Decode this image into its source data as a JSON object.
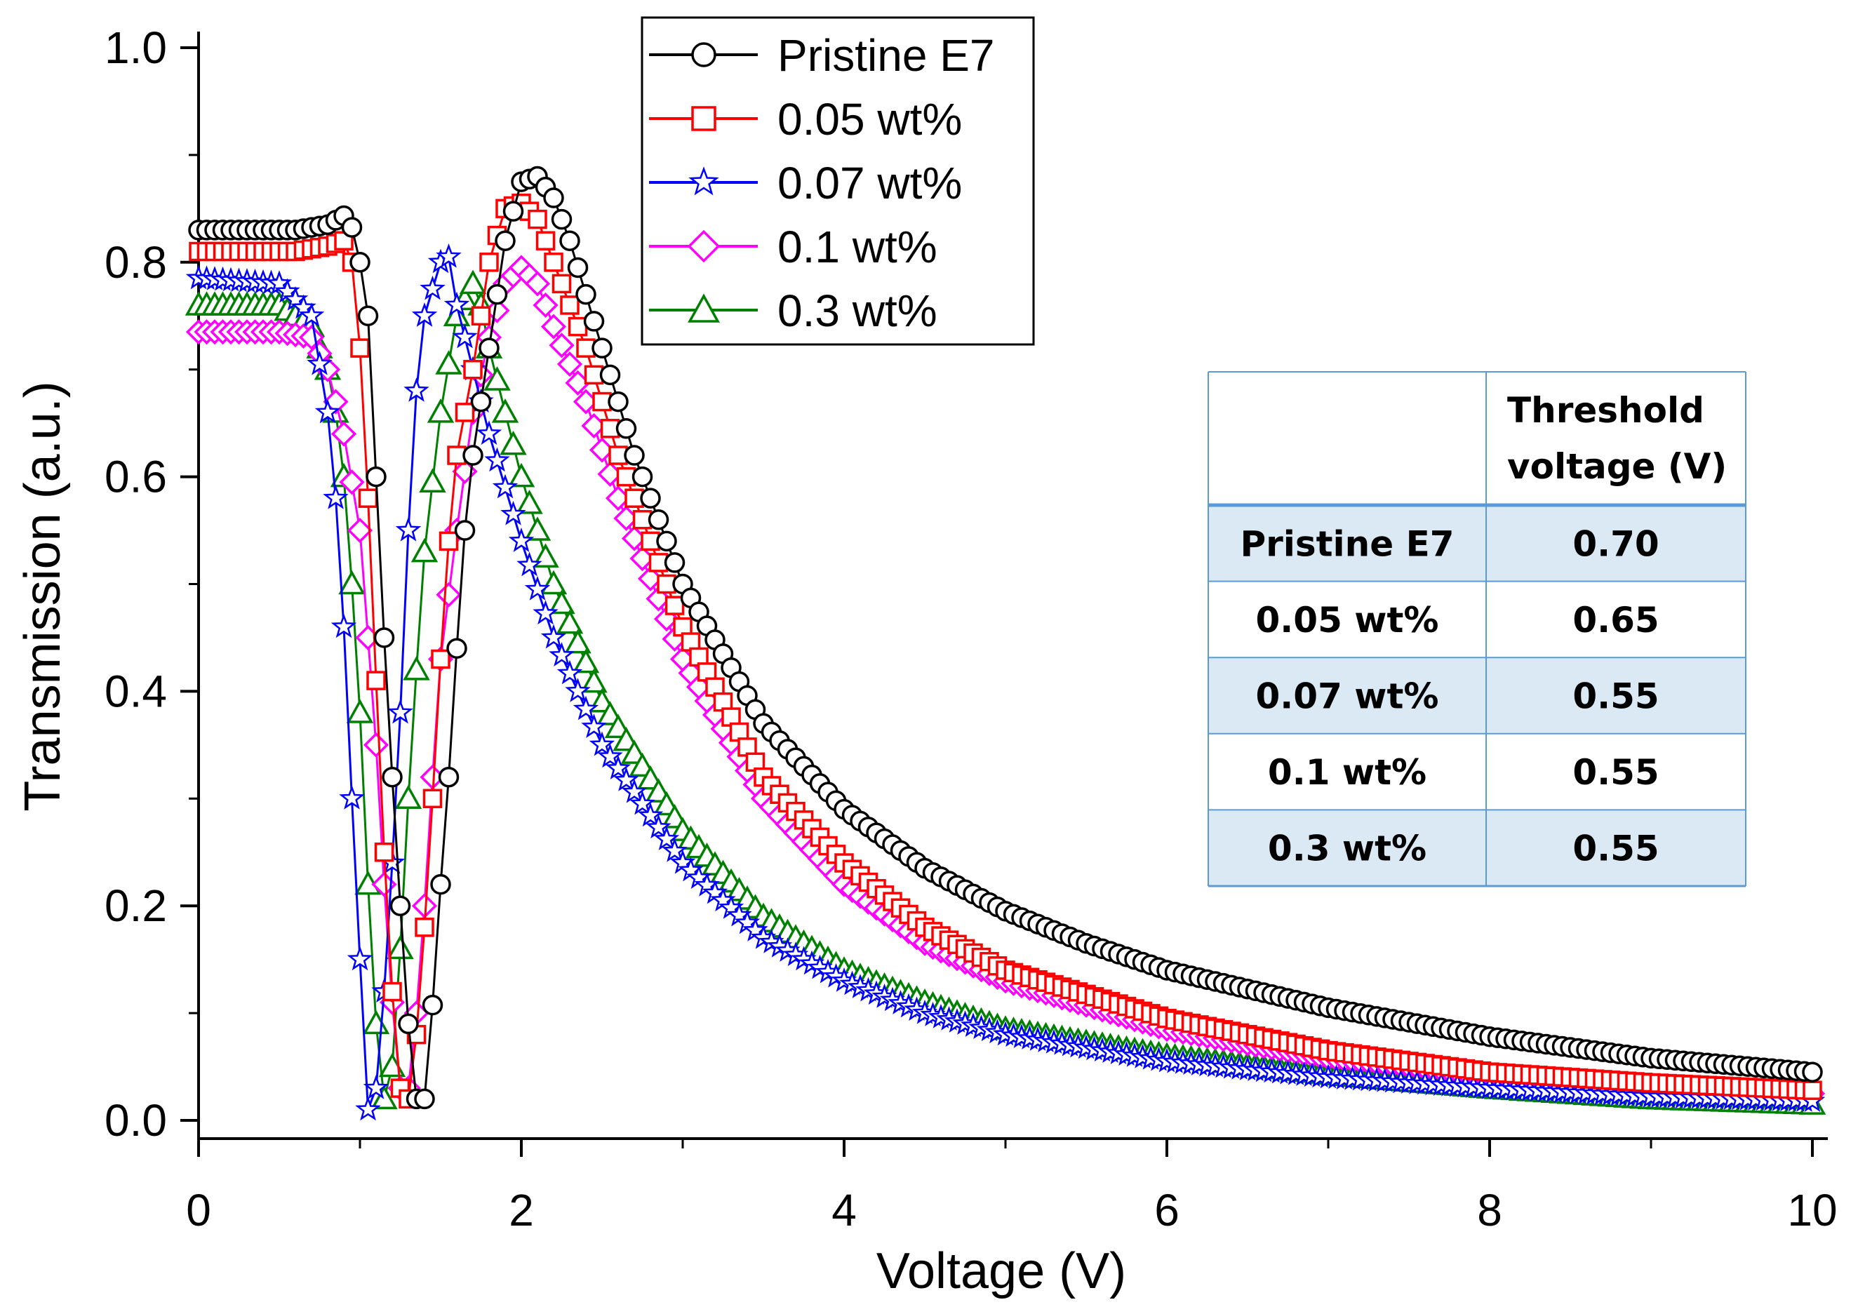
{
  "chart_data": {
    "type": "scatter",
    "title": "",
    "xlabel": "Voltage (V)",
    "ylabel": "Transmission (a.u.)",
    "xlim": [
      0,
      10
    ],
    "ylim": [
      0,
      1.0
    ],
    "x_ticks": [
      0,
      2,
      4,
      6,
      8,
      10
    ],
    "x_tick_labels": [
      "0",
      "2",
      "4",
      "6",
      "8",
      "10"
    ],
    "y_ticks": [
      0,
      0.2,
      0.4,
      0.6,
      0.8,
      1.0
    ],
    "y_tick_labels": [
      "0.0",
      "0.2",
      "0.4",
      "0.6",
      "0.8",
      "1.0"
    ],
    "grid": false,
    "legend_position": "top-center",
    "series": [
      {
        "name": "Pristine E7",
        "color": "#000000",
        "marker": "circle",
        "points": [
          [
            0,
            0.83
          ],
          [
            0.6,
            0.83
          ],
          [
            0.8,
            0.835
          ],
          [
            0.92,
            0.845
          ],
          [
            0.98,
            0.82
          ],
          [
            1.05,
            0.75
          ],
          [
            1.1,
            0.6
          ],
          [
            1.15,
            0.45
          ],
          [
            1.2,
            0.32
          ],
          [
            1.25,
            0.2
          ],
          [
            1.3,
            0.09
          ],
          [
            1.35,
            0.02
          ],
          [
            1.38,
            0.0
          ],
          [
            1.42,
            0.04
          ],
          [
            1.46,
            0.13
          ],
          [
            1.5,
            0.22
          ],
          [
            1.55,
            0.32
          ],
          [
            1.6,
            0.44
          ],
          [
            1.65,
            0.55
          ],
          [
            1.7,
            0.62
          ],
          [
            1.8,
            0.72
          ],
          [
            1.9,
            0.82
          ],
          [
            2.0,
            0.875
          ],
          [
            2.1,
            0.88
          ],
          [
            2.2,
            0.86
          ],
          [
            2.3,
            0.82
          ],
          [
            2.5,
            0.72
          ],
          [
            2.7,
            0.62
          ],
          [
            3.0,
            0.5
          ],
          [
            3.5,
            0.37
          ],
          [
            4.0,
            0.29
          ],
          [
            4.5,
            0.235
          ],
          [
            5.0,
            0.195
          ],
          [
            5.5,
            0.165
          ],
          [
            6.0,
            0.14
          ],
          [
            7.0,
            0.105
          ],
          [
            8.0,
            0.078
          ],
          [
            9.0,
            0.058
          ],
          [
            10.0,
            0.045
          ]
        ]
      },
      {
        "name": "0.05 wt%",
        "color": "#ff0000",
        "marker": "square",
        "points": [
          [
            0,
            0.81
          ],
          [
            0.6,
            0.81
          ],
          [
            0.8,
            0.815
          ],
          [
            0.9,
            0.82
          ],
          [
            0.95,
            0.8
          ],
          [
            1.0,
            0.72
          ],
          [
            1.05,
            0.58
          ],
          [
            1.1,
            0.41
          ],
          [
            1.15,
            0.25
          ],
          [
            1.2,
            0.12
          ],
          [
            1.25,
            0.03
          ],
          [
            1.3,
            0.02
          ],
          [
            1.35,
            0.08
          ],
          [
            1.4,
            0.18
          ],
          [
            1.45,
            0.3
          ],
          [
            1.5,
            0.43
          ],
          [
            1.55,
            0.54
          ],
          [
            1.6,
            0.62
          ],
          [
            1.7,
            0.7
          ],
          [
            1.8,
            0.8
          ],
          [
            1.9,
            0.85
          ],
          [
            2.0,
            0.855
          ],
          [
            2.1,
            0.84
          ],
          [
            2.2,
            0.8
          ],
          [
            2.4,
            0.72
          ],
          [
            2.6,
            0.62
          ],
          [
            3.0,
            0.46
          ],
          [
            3.5,
            0.32
          ],
          [
            4.0,
            0.24
          ],
          [
            4.5,
            0.18
          ],
          [
            5.0,
            0.14
          ],
          [
            6.0,
            0.095
          ],
          [
            7.0,
            0.065
          ],
          [
            8.0,
            0.045
          ],
          [
            9.0,
            0.035
          ],
          [
            10.0,
            0.028
          ]
        ]
      },
      {
        "name": "0.07 wt%",
        "color": "#0000ff",
        "marker": "star",
        "points": [
          [
            0,
            0.785
          ],
          [
            0.5,
            0.78
          ],
          [
            0.7,
            0.75
          ],
          [
            0.8,
            0.66
          ],
          [
            0.85,
            0.58
          ],
          [
            0.9,
            0.46
          ],
          [
            0.95,
            0.3
          ],
          [
            1.0,
            0.15
          ],
          [
            1.05,
            0.01
          ],
          [
            1.1,
            0.03
          ],
          [
            1.15,
            0.12
          ],
          [
            1.2,
            0.24
          ],
          [
            1.25,
            0.38
          ],
          [
            1.3,
            0.55
          ],
          [
            1.35,
            0.68
          ],
          [
            1.4,
            0.75
          ],
          [
            1.5,
            0.8
          ],
          [
            1.55,
            0.805
          ],
          [
            1.6,
            0.76
          ],
          [
            1.7,
            0.7
          ],
          [
            1.8,
            0.64
          ],
          [
            2.0,
            0.54
          ],
          [
            2.2,
            0.45
          ],
          [
            2.5,
            0.35
          ],
          [
            3.0,
            0.24
          ],
          [
            3.5,
            0.17
          ],
          [
            4.0,
            0.13
          ],
          [
            4.5,
            0.1
          ],
          [
            5.0,
            0.08
          ],
          [
            6.0,
            0.055
          ],
          [
            7.0,
            0.04
          ],
          [
            8.0,
            0.03
          ],
          [
            9.0,
            0.022
          ],
          [
            10.0,
            0.018
          ]
        ]
      },
      {
        "name": "0.1 wt%",
        "color": "#ff00ff",
        "marker": "diamond",
        "points": [
          [
            0,
            0.735
          ],
          [
            0.5,
            0.735
          ],
          [
            0.7,
            0.73
          ],
          [
            0.8,
            0.7
          ],
          [
            0.9,
            0.64
          ],
          [
            1.0,
            0.55
          ],
          [
            1.05,
            0.45
          ],
          [
            1.1,
            0.35
          ],
          [
            1.15,
            0.22
          ],
          [
            1.2,
            0.11
          ],
          [
            1.25,
            0.03
          ],
          [
            1.3,
            0.03
          ],
          [
            1.35,
            0.1
          ],
          [
            1.4,
            0.2
          ],
          [
            1.45,
            0.32
          ],
          [
            1.5,
            0.43
          ],
          [
            1.6,
            0.55
          ],
          [
            1.7,
            0.66
          ],
          [
            1.8,
            0.73
          ],
          [
            1.9,
            0.78
          ],
          [
            2.0,
            0.795
          ],
          [
            2.1,
            0.78
          ],
          [
            2.2,
            0.74
          ],
          [
            2.4,
            0.67
          ],
          [
            2.6,
            0.58
          ],
          [
            3.0,
            0.43
          ],
          [
            3.5,
            0.3
          ],
          [
            4.0,
            0.22
          ],
          [
            4.5,
            0.165
          ],
          [
            5.0,
            0.13
          ],
          [
            6.0,
            0.085
          ],
          [
            7.0,
            0.058
          ],
          [
            8.0,
            0.042
          ],
          [
            9.0,
            0.032
          ],
          [
            10.0,
            0.025
          ]
        ]
      },
      {
        "name": "0.3 wt%",
        "color": "#008000",
        "marker": "triangle",
        "points": [
          [
            0,
            0.76
          ],
          [
            0.5,
            0.76
          ],
          [
            0.7,
            0.74
          ],
          [
            0.8,
            0.7
          ],
          [
            0.85,
            0.66
          ],
          [
            0.9,
            0.6
          ],
          [
            0.95,
            0.5
          ],
          [
            1.0,
            0.38
          ],
          [
            1.05,
            0.22
          ],
          [
            1.1,
            0.09
          ],
          [
            1.15,
            0.02
          ],
          [
            1.2,
            0.05
          ],
          [
            1.25,
            0.16
          ],
          [
            1.3,
            0.3
          ],
          [
            1.35,
            0.42
          ],
          [
            1.4,
            0.53
          ],
          [
            1.5,
            0.66
          ],
          [
            1.6,
            0.75
          ],
          [
            1.7,
            0.78
          ],
          [
            1.75,
            0.76
          ],
          [
            1.8,
            0.72
          ],
          [
            1.9,
            0.66
          ],
          [
            2.0,
            0.6
          ],
          [
            2.2,
            0.5
          ],
          [
            2.5,
            0.39
          ],
          [
            3.0,
            0.27
          ],
          [
            3.5,
            0.19
          ],
          [
            4.0,
            0.14
          ],
          [
            4.5,
            0.11
          ],
          [
            5.0,
            0.085
          ],
          [
            6.0,
            0.06
          ],
          [
            7.0,
            0.043
          ],
          [
            8.0,
            0.03
          ],
          [
            9.0,
            0.02
          ],
          [
            10.0,
            0.015
          ]
        ]
      }
    ],
    "inset_table": {
      "headers": [
        "",
        "Threshold",
        "voltage (V)"
      ],
      "rows": [
        [
          "Pristine E7",
          "0.70"
        ],
        [
          "0.05 wt%",
          "0.65"
        ],
        [
          "0.07 wt%",
          "0.55"
        ],
        [
          "0.1 wt%",
          "0.55"
        ],
        [
          "0.3 wt%",
          "0.55"
        ]
      ],
      "row_shading": "#dbe9f5",
      "border_color": "#5b9bd5"
    }
  }
}
